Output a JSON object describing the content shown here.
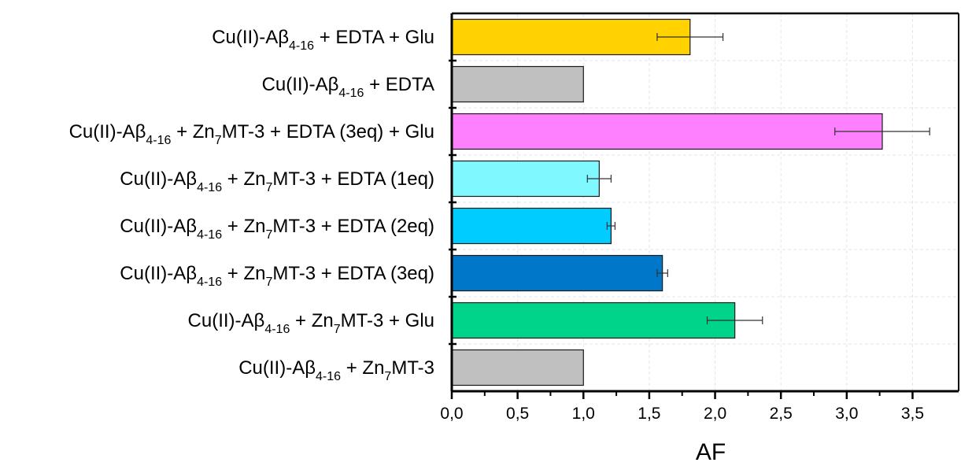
{
  "chart_data": {
    "type": "bar",
    "orientation": "horizontal",
    "xlabel": "AF",
    "ylabel": "",
    "xlim": [
      0,
      3.85
    ],
    "x_ticks": [
      "0,0",
      "0,5",
      "1,0",
      "1,5",
      "2,0",
      "2,5",
      "3,0",
      "3,5"
    ],
    "x_tick_values": [
      0,
      0.5,
      1.0,
      1.5,
      2.0,
      2.5,
      3.0,
      3.5
    ],
    "grid": "vertical dashed",
    "categories": [
      {
        "prefix": "Cu(II)-A",
        "greek": "β",
        "sub": "4-16",
        "mid": " + Zn",
        "sub2": "7",
        "suffix": "MT-3"
      },
      {
        "prefix": "Cu(II)-A",
        "greek": "β",
        "sub": "4-16",
        "mid": " + Zn",
        "sub2": "7",
        "suffix": "MT-3 + Glu"
      },
      {
        "prefix": "Cu(II)-A",
        "greek": "β",
        "sub": "4-16",
        "mid": " + Zn",
        "sub2": "7",
        "suffix": "MT-3 + EDTA (3eq)"
      },
      {
        "prefix": "Cu(II)-A",
        "greek": "β",
        "sub": "4-16",
        "mid": " + Zn",
        "sub2": "7",
        "suffix": "MT-3 + EDTA (2eq)"
      },
      {
        "prefix": "Cu(II)-A",
        "greek": "β",
        "sub": "4-16",
        "mid": " + Zn",
        "sub2": "7",
        "suffix": "MT-3 + EDTA (1eq)"
      },
      {
        "prefix": "Cu(II)-A",
        "greek": "β",
        "sub": "4-16",
        "mid": " + Zn",
        "sub2": "7",
        "suffix": "MT-3 + EDTA (3eq) + Glu"
      },
      {
        "prefix": "Cu(II)-A",
        "greek": "β",
        "sub": "4-16",
        "mid": " + EDTA",
        "sub2": "",
        "suffix": ""
      },
      {
        "prefix": "Cu(II)-A",
        "greek": "β",
        "sub": "4-16",
        "mid": " + EDTA + Glu",
        "sub2": "",
        "suffix": ""
      }
    ],
    "values": [
      1.0,
      2.15,
      1.6,
      1.21,
      1.12,
      3.27,
      1.0,
      1.81
    ],
    "errors": [
      null,
      0.21,
      0.04,
      0.03,
      0.09,
      0.36,
      null,
      0.25
    ],
    "colors": [
      "#C0C0C0",
      "#00D38A",
      "#0077C8",
      "#00CCFF",
      "#80F8FF",
      "#FF80FF",
      "#C0C0C0",
      "#FFD200"
    ]
  }
}
